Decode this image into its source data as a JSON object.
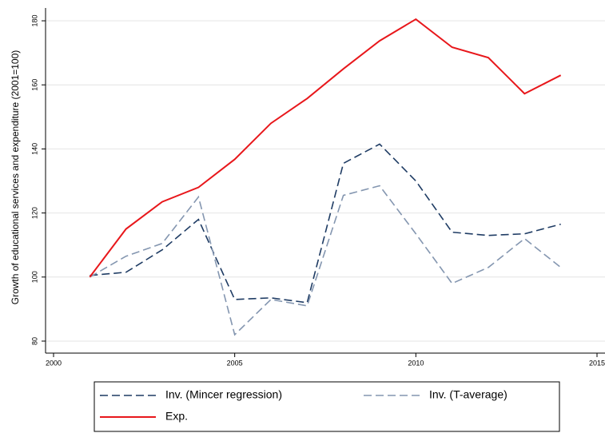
{
  "chart_data": {
    "type": "line",
    "y_label": "Growth of educational services and expenditure (2001=100)",
    "x": [
      2001,
      2002,
      2003,
      2004,
      2005,
      2006,
      2007,
      2008,
      2009,
      2010,
      2011,
      2012,
      2013,
      2014
    ],
    "series": [
      {
        "name": "Inv. (Mincer regression)",
        "color": "#1f3c64",
        "dash": "dashed",
        "values": [
          100.5,
          101.5,
          108.5,
          118,
          93,
          93.5,
          92,
          135.5,
          141.5,
          130,
          114,
          113,
          113.5,
          116.5
        ]
      },
      {
        "name": "Inv. (T-average)",
        "color": "#8496b0",
        "dash": "dashed",
        "values": [
          100,
          106.5,
          110.5,
          125,
          82,
          93,
          91,
          125.5,
          128.5,
          113.5,
          98,
          103,
          112,
          103
        ]
      },
      {
        "name": "Exp.",
        "color": "#e8171b",
        "dash": "solid",
        "values": [
          100,
          115,
          123.5,
          128,
          136.75,
          148,
          155.75,
          165,
          173.75,
          180.5,
          171.75,
          168.5,
          157.25,
          163
        ]
      }
    ],
    "xlim": [
      2000,
      2015
    ],
    "xticks": [
      2000,
      2005,
      2010,
      2015
    ],
    "ylim": [
      77.5,
      184
    ],
    "yticks": [
      80,
      100,
      120,
      140,
      160,
      180
    ],
    "grid": true
  }
}
